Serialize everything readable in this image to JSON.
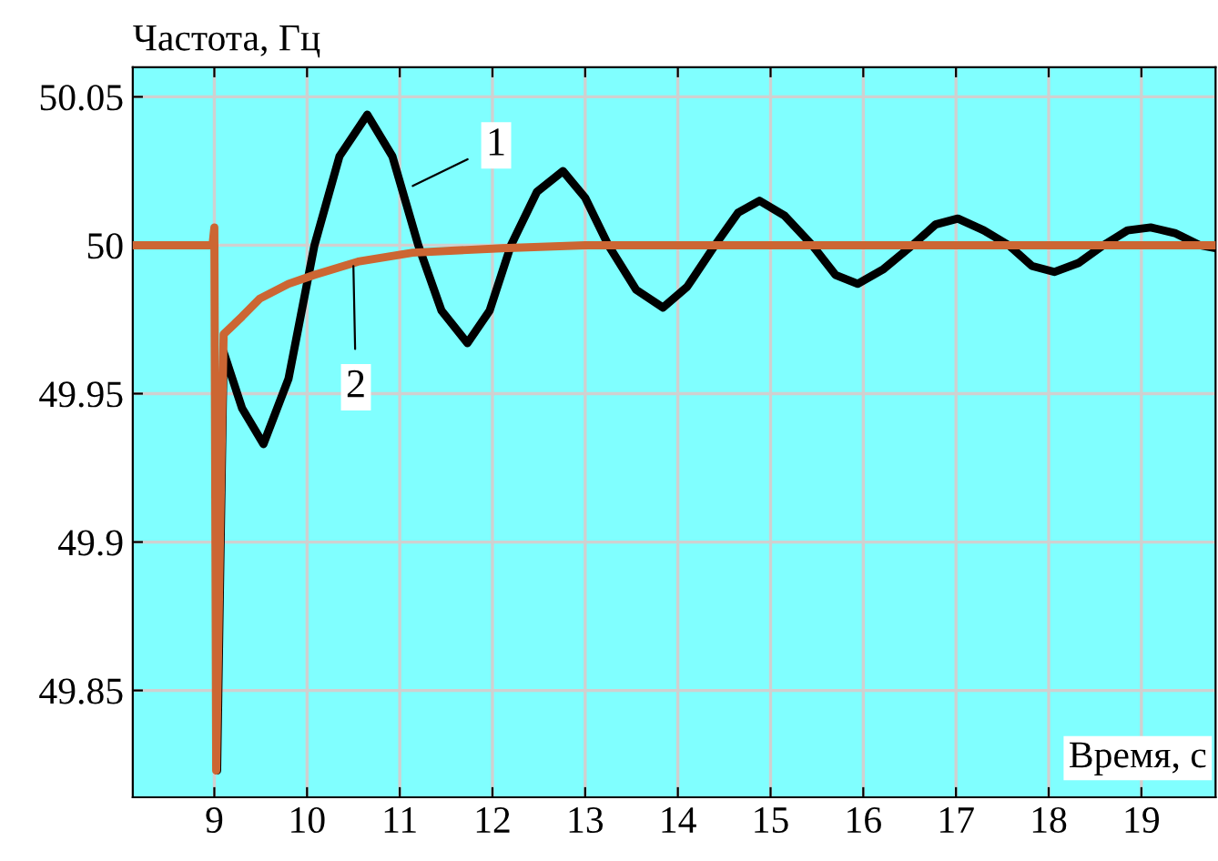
{
  "chart_data": {
    "type": "line",
    "ylabel": "Частота, Гц",
    "xlabel": "Время, с",
    "xlim": [
      8.12,
      19.8
    ],
    "ylim": [
      49.814,
      50.06
    ],
    "xticks": [
      9,
      10,
      11,
      12,
      13,
      14,
      15,
      16,
      17,
      18,
      19
    ],
    "yticks": [
      49.85,
      49.9,
      49.95,
      50,
      50.05
    ],
    "grid": true,
    "marker": "none",
    "line_style": "solid",
    "series": [
      {
        "color": "#000000",
        "x": [
          9.03,
          9.1,
          9.3,
          9.53,
          9.8,
          10.08,
          10.35,
          10.65,
          10.92,
          11.2,
          11.45,
          11.73,
          11.97,
          12.2,
          12.48,
          12.76,
          13.0,
          13.25,
          13.55,
          13.84,
          14.1,
          14.4,
          14.65,
          14.88,
          15.15,
          15.45,
          15.7,
          15.94,
          16.22,
          16.53,
          16.78,
          17.02,
          17.3,
          17.57,
          17.82,
          18.06,
          18.32,
          18.59,
          18.85,
          19.1,
          19.37,
          19.63,
          19.8
        ],
        "values": [
          49.823,
          49.964,
          49.945,
          49.933,
          49.955,
          50.0,
          50.03,
          50.044,
          50.03,
          50.0,
          49.978,
          49.967,
          49.978,
          50.0,
          50.018,
          50.025,
          50.016,
          50.0,
          49.985,
          49.979,
          49.986,
          50.0,
          50.011,
          50.015,
          50.01,
          50.0,
          49.99,
          49.987,
          49.992,
          50.0,
          50.007,
          50.009,
          50.005,
          50.0,
          49.993,
          49.991,
          49.994,
          50.0,
          50.005,
          50.006,
          50.004,
          50.0,
          49.999
        ]
      },
      {
        "color": "#cc6633",
        "x": [
          8.12,
          8.98,
          9.0,
          9.02,
          9.06,
          9.1,
          9.3,
          9.49,
          9.8,
          10.08,
          10.55,
          11.14,
          12.1,
          13.0,
          19.8
        ],
        "values": [
          50.0,
          50.0,
          50.006,
          49.823,
          49.9,
          49.97,
          49.976,
          49.982,
          49.987,
          49.99,
          49.9945,
          49.9975,
          49.999,
          50.0,
          50.0
        ]
      }
    ],
    "annotations": [
      {
        "text": "1",
        "x": 11.14,
        "y": 50.02
      },
      {
        "text": "2",
        "x": 10.5,
        "y": 49.993
      }
    ]
  }
}
